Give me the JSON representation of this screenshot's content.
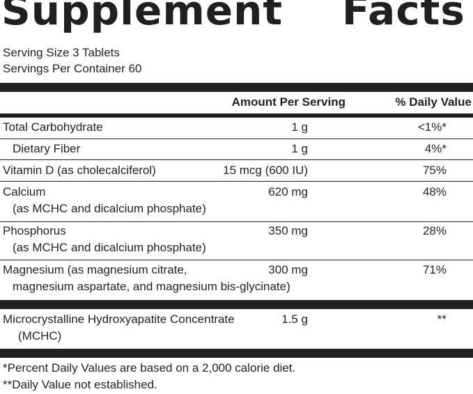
{
  "title": "Supplement    Facts",
  "serving_size": "Serving Size 3 Tablets",
  "servings_per_container": "Servings Per Container 60",
  "header": {
    "amount": "Amount Per Serving",
    "daily_value": "% Daily Value"
  },
  "rows": [
    {
      "name": "Total Carbohydrate",
      "amount": "1 g",
      "dv": "<1%*"
    },
    {
      "name": "Dietary Fiber",
      "amount": "1 g",
      "dv": "4%*"
    },
    {
      "name": "Vitamin D (as cholecalciferol)",
      "amount": "15 mcg (600 IU)",
      "dv": "75%"
    },
    {
      "name": "Calcium",
      "name2": "(as MCHC and dicalcium phosphate)",
      "amount": "620 mg",
      "dv": "48%"
    },
    {
      "name": "Phosphorus",
      "name2": "(as MCHC and dicalcium phosphate)",
      "amount": "350 mg",
      "dv": "28%"
    },
    {
      "name": "Magnesium (as magnesium citrate,",
      "name2": "magnesium aspartate, and magnesium bis-glycinate)",
      "amount": "300 mg",
      "dv": "71%"
    },
    {
      "name": "Microcrystalline Hydroxyapatite Concentrate",
      "name2": "(MCHC)",
      "amount": "1.5 g",
      "dv": "**"
    }
  ],
  "footnotes": [
    "*Percent Daily Values are based on a 2,000 calorie diet.",
    "**Daily Value not established."
  ]
}
